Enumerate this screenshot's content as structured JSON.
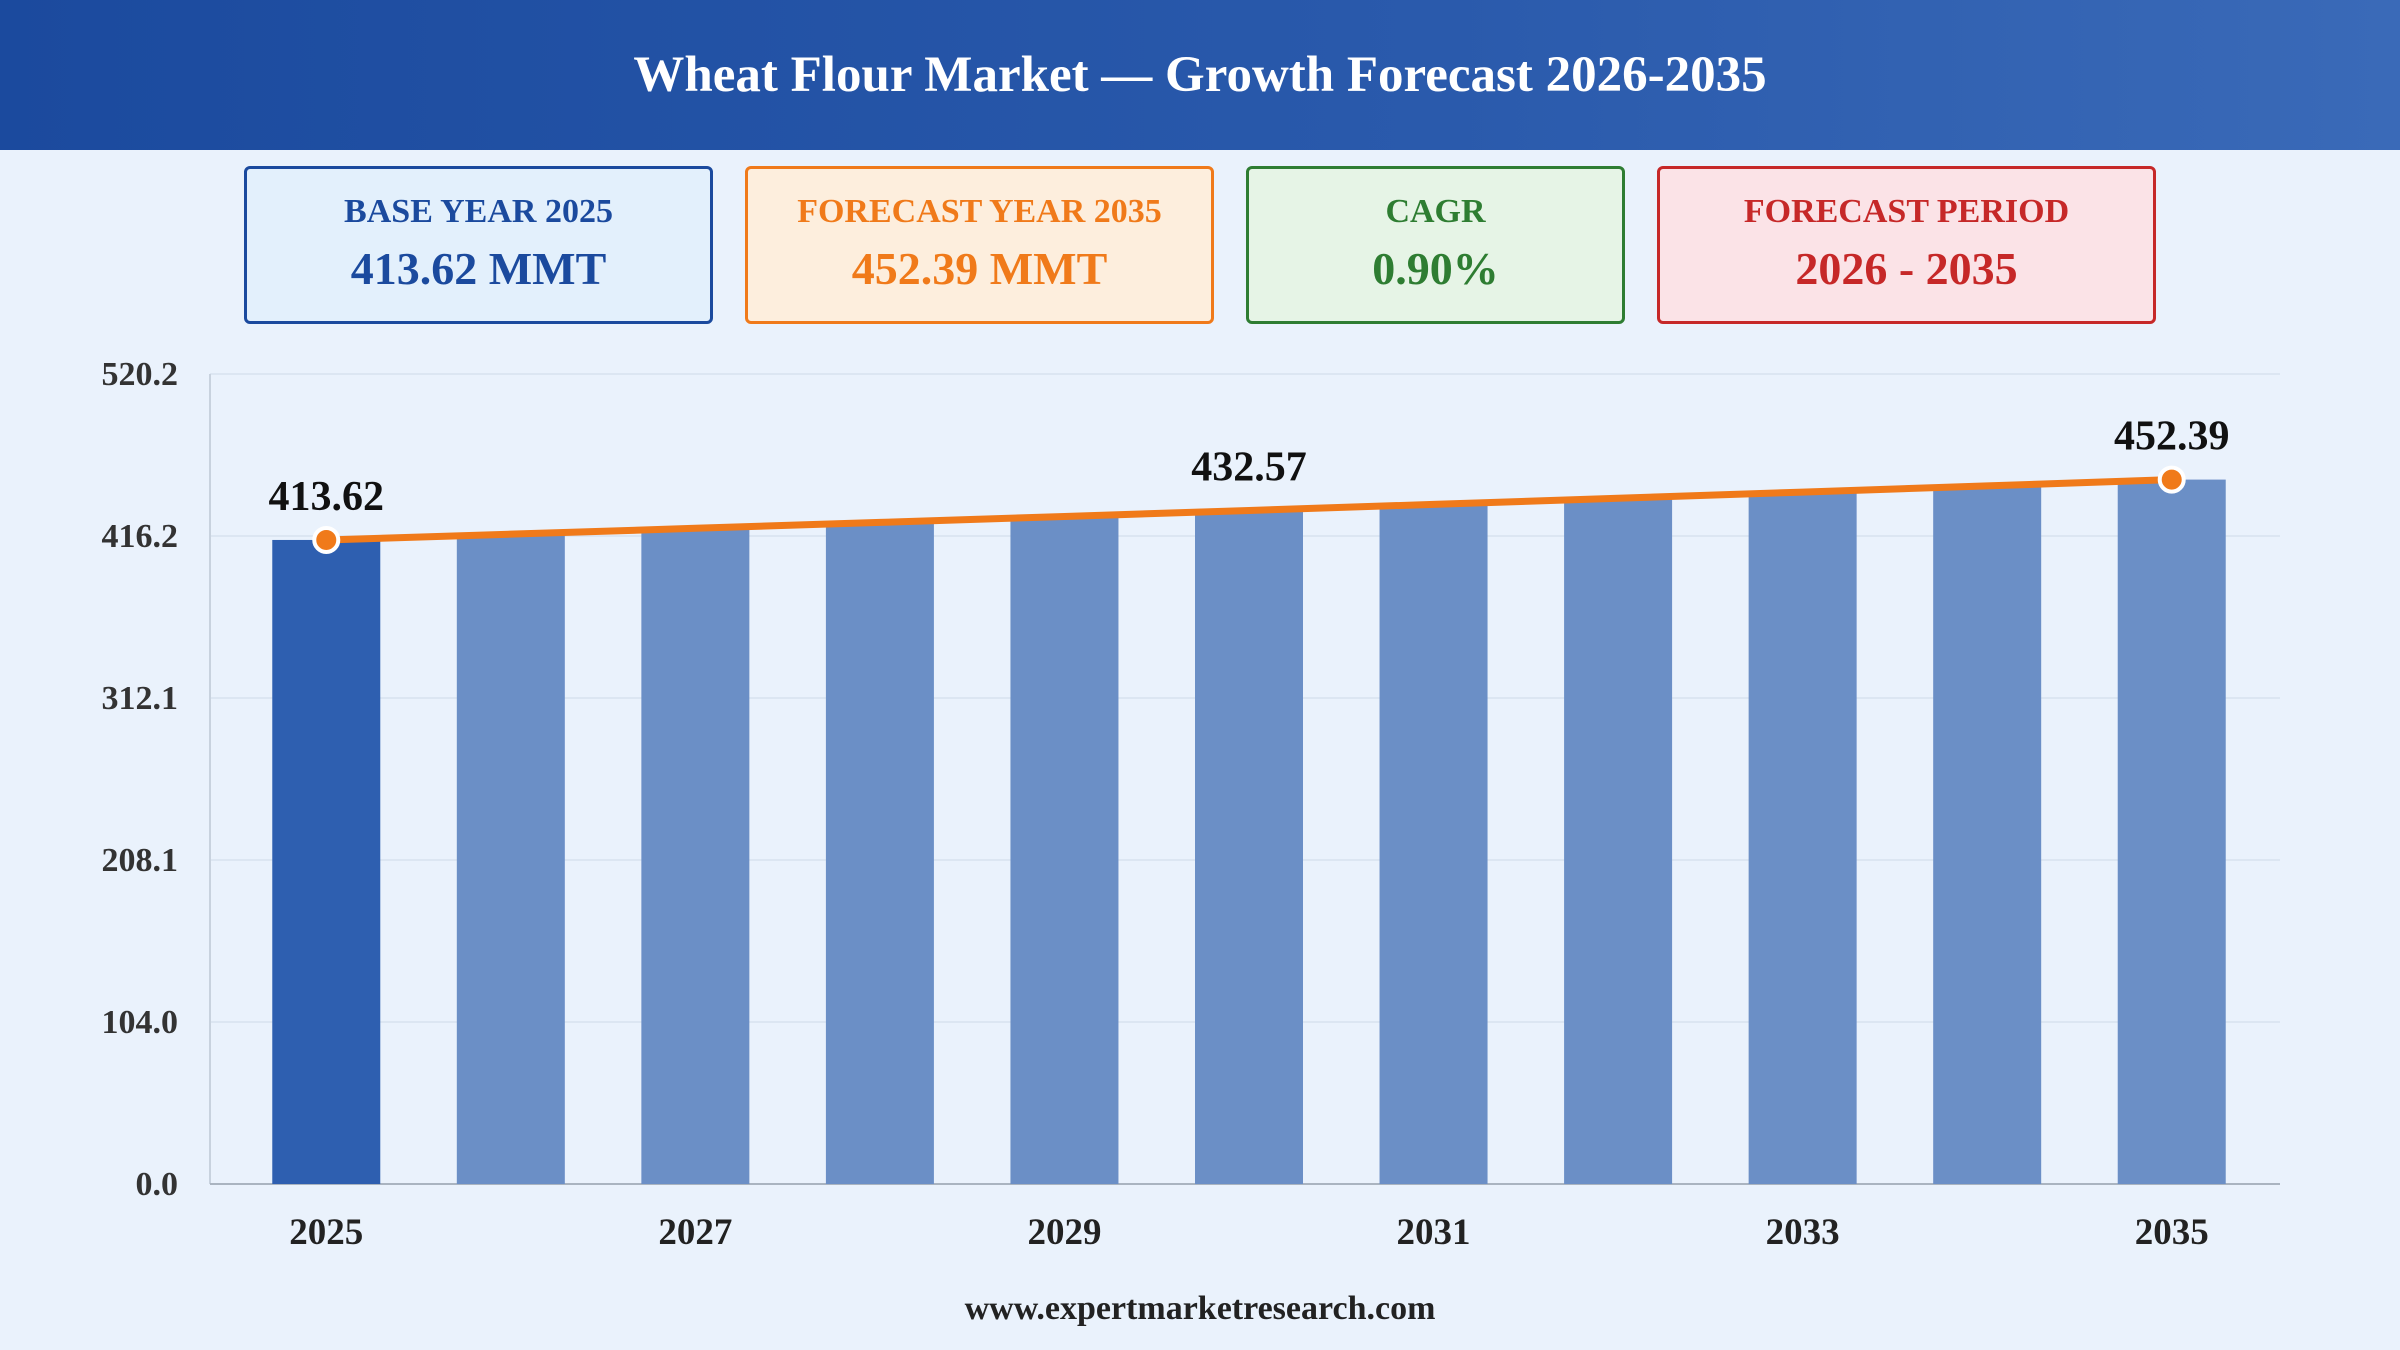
{
  "title": "Wheat Flour Market — Growth Forecast 2026-2035",
  "cards": {
    "base": {
      "label": "BASE YEAR 2025",
      "value": "413.62 MMT"
    },
    "forecast": {
      "label": "FORECAST YEAR 2035",
      "value": "452.39 MMT"
    },
    "cagr": {
      "label": "CAGR",
      "value": "0.90%"
    },
    "period": {
      "label": "FORECAST PERIOD",
      "value": "2026 - 2035"
    }
  },
  "footer": "www.expertmarketresearch.com",
  "colors": {
    "header": "#1b4a9e",
    "base_bar": "#2e5fb0",
    "forecast_bar": "#6b8fc6",
    "trend_line": "#f07a1a",
    "grid": "#d8e2ee"
  },
  "chart_data": {
    "type": "bar",
    "categories": [
      "2025",
      "2026",
      "2027",
      "2028",
      "2029",
      "2030",
      "2031",
      "2032",
      "2033",
      "2034",
      "2035"
    ],
    "values": [
      413.62,
      417.34,
      421.1,
      424.89,
      428.71,
      432.57,
      436.46,
      440.39,
      444.35,
      448.35,
      452.39
    ],
    "x_tick_labels": [
      "2025",
      "",
      "2027",
      "",
      "2029",
      "",
      "2031",
      "",
      "2033",
      "",
      "2035"
    ],
    "ylim": [
      0,
      520.2
    ],
    "y_ticks": [
      "0.0",
      "104.0",
      "208.1",
      "312.1",
      "416.2",
      "520.2"
    ],
    "y_tick_values": [
      0,
      104.0,
      208.1,
      312.1,
      416.2,
      520.2
    ],
    "trend_line": true,
    "data_labels": [
      {
        "index": 0,
        "text": "413.62"
      },
      {
        "index": 5,
        "text": "432.57"
      },
      {
        "index": 10,
        "text": "452.39"
      }
    ],
    "grid": true,
    "legend": "none"
  }
}
